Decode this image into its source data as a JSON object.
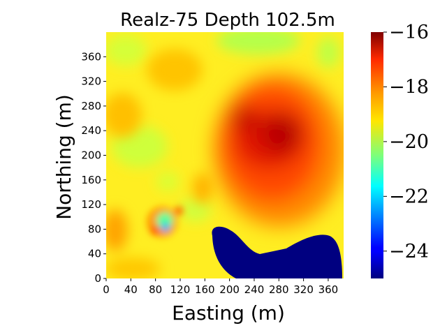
{
  "chart_data": {
    "type": "heatmap",
    "title": "Realz-75 Depth 102.5m",
    "xlabel": "Easting (m)",
    "ylabel": "Northing (m)",
    "xlim": [
      0,
      385
    ],
    "ylim": [
      0,
      400
    ],
    "xticks": [
      0,
      40,
      80,
      120,
      160,
      200,
      240,
      280,
      320,
      360
    ],
    "yticks": [
      0,
      40,
      80,
      120,
      160,
      200,
      240,
      280,
      320,
      360
    ],
    "colormap": "jet",
    "colorbar": {
      "range": [
        -25,
        -16
      ],
      "ticks": [
        -16,
        -18,
        -20,
        -22,
        -24
      ],
      "tick_labels": [
        "−16",
        "−18",
        "−20",
        "−22",
        "−24"
      ]
    },
    "features": [
      {
        "kind": "high",
        "label": "high-value zone",
        "center": [
          280,
          225
        ],
        "value": -16.5
      },
      {
        "kind": "low",
        "label": "low-value plume",
        "region": "southeast, easting 170-380, northing 0-80",
        "value": -25
      },
      {
        "kind": "low",
        "label": "local low",
        "center": [
          95,
          85
        ],
        "value": -22
      }
    ],
    "background_value": -19.5
  }
}
